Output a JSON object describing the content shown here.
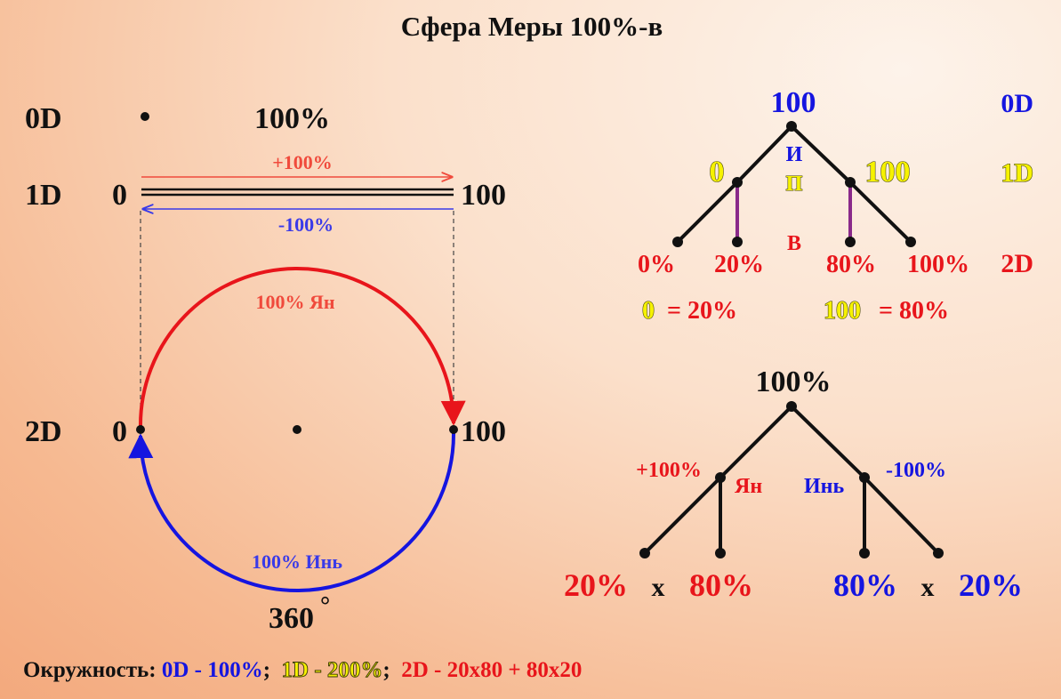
{
  "title": "Сфера Меры 100%-в",
  "left": {
    "dim_0d": "0D",
    "dim_1d": "1D",
    "dim_2d": "2D",
    "value_0d": "100%",
    "line_start": "0",
    "line_end": "100",
    "plus_label": "+100%",
    "minus_label": "-100%",
    "circle_start": "0",
    "circle_end": "100",
    "yan_label": "100% Ян",
    "yin_label": "100% Инь",
    "degrees": "360",
    "degree_sign": "°"
  },
  "tree1": {
    "root": "100",
    "left_node": "0",
    "right_node": "100",
    "ili_1": "И",
    "ili_2": "П",
    "ili_3": "В",
    "leaves": [
      "0%",
      "20%",
      "80%",
      "100%"
    ],
    "dim_0d": "0D",
    "dim_1d": "1D",
    "dim_2d": "2D",
    "eq_left_a": "0",
    "eq_left_b": "= 20%",
    "eq_right_a": "100",
    "eq_right_b": "= 80%"
  },
  "tree2": {
    "root": "100%",
    "plus": "+100%",
    "minus": "-100%",
    "yan": "Ян",
    "yin": "Инь",
    "left_a": "20%",
    "left_x": "x",
    "left_b": "80%",
    "right_a": "80%",
    "right_x": "x",
    "right_b": "20%"
  },
  "footer": {
    "label": "Окружность:",
    "part1": "0D - 100%",
    "sep1": ";",
    "part2": "1D - 200%",
    "sep2": ";",
    "part3": "2D - 20x80 + 80x20"
  },
  "colors": {
    "red": "#e8151b",
    "blue": "#1515e0",
    "yellow": "#f6f200",
    "purple": "#8a2a8a",
    "black": "#111111"
  }
}
